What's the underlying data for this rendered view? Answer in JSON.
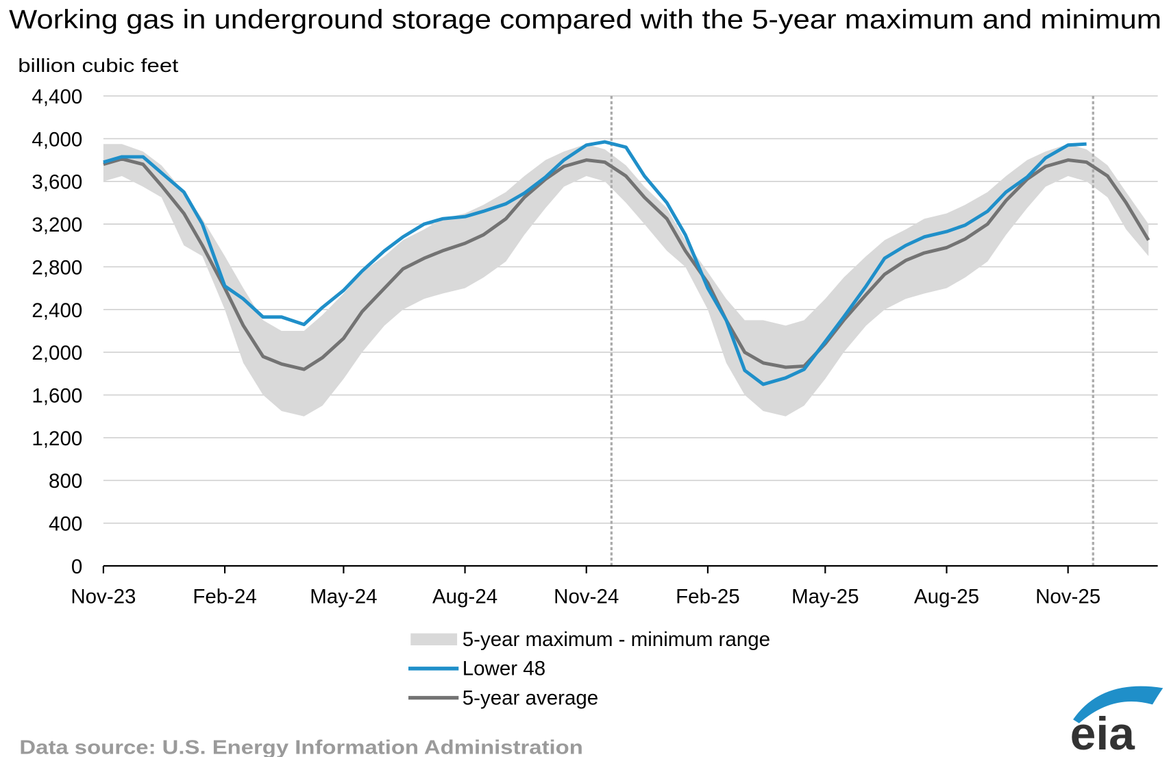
{
  "chart_data": {
    "type": "line",
    "title": "Working gas in underground  storage compared with the 5-year maximum  and minimum",
    "ylabel": "billion cubic feet",
    "ylim": [
      0,
      4400
    ],
    "yticks": [
      0,
      400,
      800,
      1200,
      1600,
      2000,
      2400,
      2800,
      3200,
      3600,
      4000,
      4400
    ],
    "ytick_labels": [
      "0",
      "400",
      "800",
      "1,200",
      "1,600",
      "2,000",
      "2,400",
      "2,800",
      "3,200",
      "3,600",
      "4,000",
      "4,400"
    ],
    "xlim": [
      "2023-11-01",
      "2026-01-08"
    ],
    "xticks": [
      "2023-11-01",
      "2024-02-01",
      "2024-05-01",
      "2024-08-01",
      "2024-11-01",
      "2025-02-01",
      "2025-05-01",
      "2025-08-01",
      "2025-11-01"
    ],
    "xtick_labels": [
      "Nov-23",
      "Feb-24",
      "May-24",
      "Aug-24",
      "Nov-24",
      "Feb-25",
      "May-25",
      "Aug-25",
      "Nov-25"
    ],
    "grid": "horizontal",
    "legend_placement": "bottom-center",
    "reference_lines": [
      "2024-11-20",
      "2025-11-20"
    ],
    "x": [
      "2023-11-01",
      "2023-11-15",
      "2023-12-01",
      "2023-12-15",
      "2024-01-01",
      "2024-01-15",
      "2024-02-01",
      "2024-02-15",
      "2024-03-01",
      "2024-03-15",
      "2024-04-01",
      "2024-04-15",
      "2024-05-01",
      "2024-05-15",
      "2024-06-01",
      "2024-06-15",
      "2024-07-01",
      "2024-07-15",
      "2024-08-01",
      "2024-08-15",
      "2024-09-01",
      "2024-09-15",
      "2024-10-01",
      "2024-10-15",
      "2024-11-01",
      "2024-11-15",
      "2024-12-01",
      "2024-12-15",
      "2025-01-01",
      "2025-01-15",
      "2025-02-01",
      "2025-02-15",
      "2025-03-01",
      "2025-03-15",
      "2025-04-01",
      "2025-04-15",
      "2025-05-01",
      "2025-05-15",
      "2025-06-01",
      "2025-06-15",
      "2025-07-01",
      "2025-07-15",
      "2025-08-01",
      "2025-08-15",
      "2025-09-01",
      "2025-09-15",
      "2025-10-01",
      "2025-10-15",
      "2025-11-01",
      "2025-11-15",
      "2025-12-01",
      "2025-12-15",
      "2026-01-01"
    ],
    "range": {
      "name": "5-year maximum - minimum range",
      "color": "#d9d9d9",
      "max": [
        3950,
        3950,
        3880,
        3750,
        3500,
        3250,
        2900,
        2600,
        2300,
        2200,
        2200,
        2350,
        2550,
        2750,
        2900,
        3050,
        3150,
        3250,
        3300,
        3380,
        3500,
        3650,
        3800,
        3880,
        3950,
        3900,
        3750,
        3550,
        3350,
        3050,
        2750,
        2500,
        2300,
        2300,
        2250,
        2300,
        2500,
        2700,
        2900,
        3050,
        3150,
        3250,
        3300,
        3380,
        3500,
        3650,
        3800,
        3880,
        3950,
        3900,
        3750,
        3500,
        3200
      ],
      "min": [
        3600,
        3650,
        3550,
        3450,
        3000,
        2900,
        2400,
        1900,
        1600,
        1450,
        1400,
        1500,
        1750,
        2000,
        2250,
        2400,
        2500,
        2550,
        2600,
        2700,
        2850,
        3100,
        3350,
        3550,
        3650,
        3600,
        3400,
        3200,
        2950,
        2800,
        2400,
        1900,
        1600,
        1450,
        1400,
        1500,
        1750,
        2000,
        2250,
        2400,
        2500,
        2550,
        2600,
        2700,
        2850,
        3100,
        3350,
        3550,
        3650,
        3600,
        3450,
        3150,
        2900
      ]
    },
    "series": [
      {
        "name": "Lower 48",
        "color": "#1f8fc9",
        "values": [
          3780,
          3830,
          3830,
          3680,
          3500,
          3200,
          2620,
          2500,
          2330,
          2330,
          2260,
          2420,
          2580,
          2760,
          2950,
          3080,
          3200,
          3250,
          3270,
          3320,
          3390,
          3490,
          3640,
          3800,
          3940,
          3970,
          3920,
          3650,
          3400,
          3100,
          2600,
          2300,
          1830,
          1700,
          1760,
          1840,
          2100,
          2330,
          2620,
          2880,
          3000,
          3080,
          3130,
          3190,
          3320,
          3500,
          3640,
          3820,
          3940,
          3950,
          null,
          null,
          null
        ]
      },
      {
        "name": "5-year average",
        "color": "#737373",
        "values": [
          3760,
          3810,
          3760,
          3560,
          3300,
          3000,
          2600,
          2250,
          1960,
          1890,
          1840,
          1950,
          2130,
          2380,
          2600,
          2780,
          2880,
          2950,
          3020,
          3100,
          3250,
          3450,
          3620,
          3740,
          3800,
          3780,
          3650,
          3450,
          3250,
          2950,
          2650,
          2300,
          2000,
          1900,
          1860,
          1870,
          2080,
          2300,
          2540,
          2730,
          2860,
          2930,
          2980,
          3060,
          3200,
          3420,
          3620,
          3740,
          3800,
          3780,
          3650,
          3400,
          3050
        ]
      }
    ]
  },
  "footer": {
    "source": "Data source:  U.S. Energy Information Administration",
    "logo_text": "eia"
  }
}
